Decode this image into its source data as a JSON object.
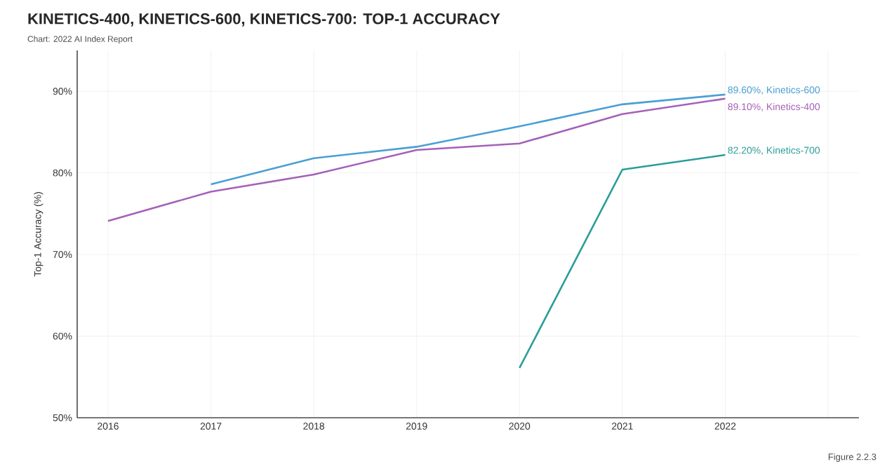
{
  "chart_data": {
    "type": "line",
    "title": "KINETICS-400, KINETICS-600, KINETICS-700: TOP-1 ACCURACY",
    "ylabel": "Top-1 Accuracy (%)",
    "annotations": [
      "Chart: 2022 AI Index Report",
      "Figure 2.2.3"
    ],
    "xlim": [
      2015.7,
      2023.3
    ],
    "xticks": [
      2016,
      2017,
      2018,
      2019,
      2020,
      2021,
      2022,
      {
        "value": 2023,
        "label": null
      }
    ],
    "ylim": [
      50,
      95
    ],
    "yticks": [
      {
        "value": 50,
        "label": "50%"
      },
      {
        "value": 60,
        "label": "60%"
      },
      {
        "value": 70,
        "label": "70%"
      },
      {
        "value": 80,
        "label": "80%"
      },
      {
        "value": 90,
        "label": "90%"
      }
    ],
    "grid": true,
    "legend": false,
    "marker": "none",
    "line_style": "solid",
    "series": [
      {
        "name": "Kinetics-400",
        "color": "#a561b8",
        "x": [
          2016,
          2017,
          2018,
          2019,
          2020,
          2021,
          2022
        ],
        "values": [
          74.1,
          77.7,
          79.8,
          82.8,
          83.6,
          87.2,
          89.1
        ],
        "value_labels": [
          null,
          null,
          null,
          null,
          null,
          null,
          "89.10%,"
        ]
      },
      {
        "name": "Kinetics-600",
        "color": "#4a9fd4",
        "x": [
          2017,
          2018,
          2019,
          2020,
          2021,
          2022
        ],
        "values": [
          78.6,
          81.8,
          83.2,
          85.7,
          88.4,
          89.6
        ],
        "value_labels": [
          null,
          null,
          null,
          null,
          null,
          "89.60%,"
        ]
      },
      {
        "name": "Kinetics-700",
        "color": "#2a9d9a",
        "x": [
          2020,
          2021,
          2022
        ],
        "values": [
          56.1,
          80.4,
          82.2
        ],
        "value_labels": [
          null,
          null,
          "82.20%,"
        ]
      }
    ]
  }
}
